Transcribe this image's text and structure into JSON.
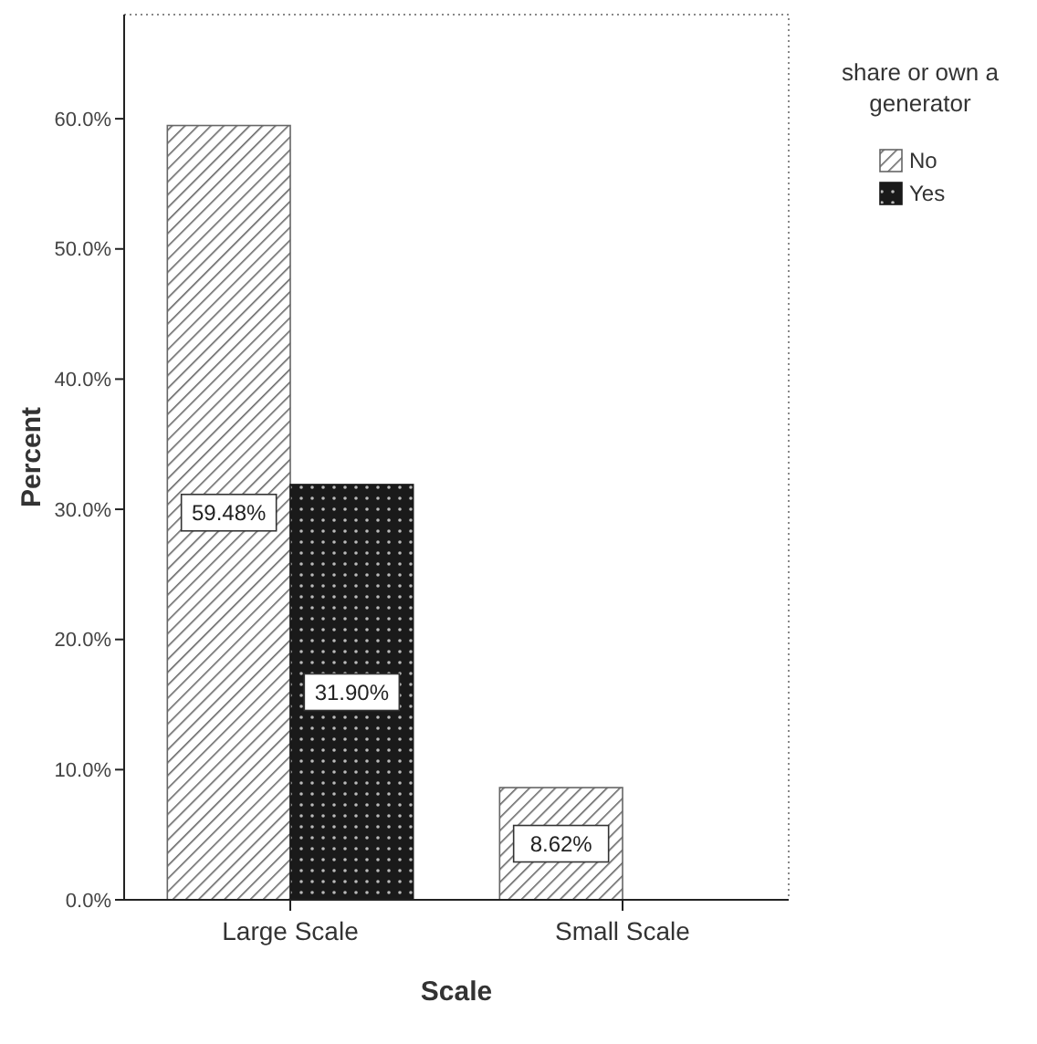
{
  "chart_data": {
    "type": "bar",
    "xlabel": "Scale",
    "ylabel": "Percent",
    "legend_title": "share or own a generator",
    "categories": [
      "Large Scale",
      "Small Scale"
    ],
    "series": [
      {
        "name": "No",
        "color": "#666666",
        "values": [
          59.48,
          8.62
        ],
        "value_labels": [
          "59.48%",
          "8.62%"
        ]
      },
      {
        "name": "Yes",
        "color": "#1a1a1a",
        "values": [
          31.9,
          null
        ],
        "value_labels": [
          "31.90%",
          null
        ]
      }
    ],
    "ylim": [
      0,
      68
    ],
    "yticks": [
      {
        "value": 0,
        "label": "0.0%"
      },
      {
        "value": 10,
        "label": "10.0%"
      },
      {
        "value": 20,
        "label": "20.0%"
      },
      {
        "value": 30,
        "label": "30.0%"
      },
      {
        "value": 40,
        "label": "40.0%"
      },
      {
        "value": 50,
        "label": "50.0%"
      },
      {
        "value": 60,
        "label": "60.0%"
      }
    ],
    "grid": false,
    "legend": "right"
  }
}
